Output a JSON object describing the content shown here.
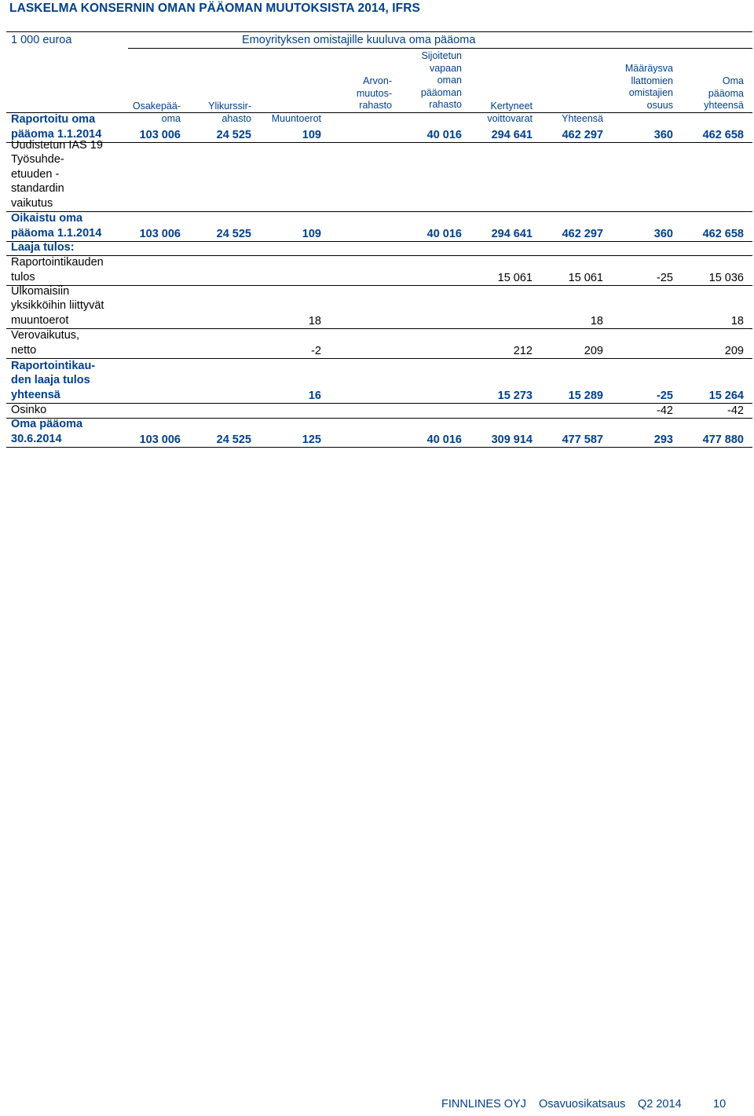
{
  "title": "LASKELMA KONSERNIN OMAN PÄÄOMAN MUUTOKSISTA 2014, IFRS",
  "unit": "1 000 euroa",
  "group_header": "Emoyrityksen omistajille kuuluva oma pääoma",
  "columns": [
    "Osakepää-\noma",
    "Ylikurssir-\nahasto",
    "Muuntoerot",
    "Arvon-\nmuutos-\nrahasto",
    "Sijoitetun\nvapaan\noman\npääoman\nrahasto",
    "Kertyneet\nvoittovarat",
    "Yhteensä",
    "Määräysva\nllattomien\nomistajien\nosuus",
    "Oma\npääoma\nyhteensä"
  ],
  "rows": [
    {
      "label": "Raportoitu oma\npääoma 1.1.2014",
      "bold": true,
      "blue": true,
      "values": [
        "103 006",
        "24 525",
        "109",
        "",
        "40 016",
        "294 641",
        "462 297",
        "360",
        "462 658"
      ]
    },
    {
      "label": "Uudistetun IAS 19\nTyösuhde-\netuuden -\nstandardin\nvaikutus",
      "bold": false,
      "blue": false,
      "values": [
        "",
        "",
        "",
        "",
        "",
        "",
        "",
        "",
        ""
      ]
    },
    {
      "label": "Oikaistu oma\npääoma 1.1.2014",
      "bold": true,
      "blue": true,
      "values": [
        "103 006",
        "24 525",
        "109",
        "",
        "40 016",
        "294 641",
        "462 297",
        "360",
        "462 658"
      ]
    },
    {
      "label": "Laaja tulos:",
      "bold": true,
      "blue": true,
      "values": [
        "",
        "",
        "",
        "",
        "",
        "",
        "",
        "",
        ""
      ]
    },
    {
      "label": "Raportointikauden\ntulos",
      "bold": false,
      "blue": false,
      "values": [
        "",
        "",
        "",
        "",
        "",
        "15 061",
        "15 061",
        "-25",
        "15 036"
      ]
    },
    {
      "label": "Ulkomaisiin\nyksikköihin liittyvät\nmuuntoerot",
      "bold": false,
      "blue": false,
      "values": [
        "",
        "",
        "18",
        "",
        "",
        "",
        "18",
        "",
        "18"
      ]
    },
    {
      "label": "Verovaikutus,\nnetto",
      "bold": false,
      "blue": false,
      "values": [
        "",
        "",
        "-2",
        "",
        "",
        "212",
        "209",
        "",
        "209"
      ]
    },
    {
      "label": "Raportointikau-\nden laaja tulos\nyhteensä",
      "bold": true,
      "blue": true,
      "values": [
        "",
        "",
        "16",
        "",
        "",
        "15 273",
        "15 289",
        "-25",
        "15 264"
      ]
    },
    {
      "label": "Osinko",
      "bold": false,
      "blue": false,
      "values": [
        "",
        "",
        "",
        "",
        "",
        "",
        "",
        "-42",
        "-42"
      ]
    },
    {
      "label": "Oma pääoma\n30.6.2014",
      "bold": true,
      "blue": true,
      "values": [
        "103 006",
        "24 525",
        "125",
        "",
        "40 016",
        "309 914",
        "477 587",
        "293",
        "477 880"
      ]
    }
  ],
  "footer": {
    "company": "FINNLINES OYJ",
    "report": "Osavuosikatsaus",
    "period": "Q2 2014",
    "page": "10"
  }
}
